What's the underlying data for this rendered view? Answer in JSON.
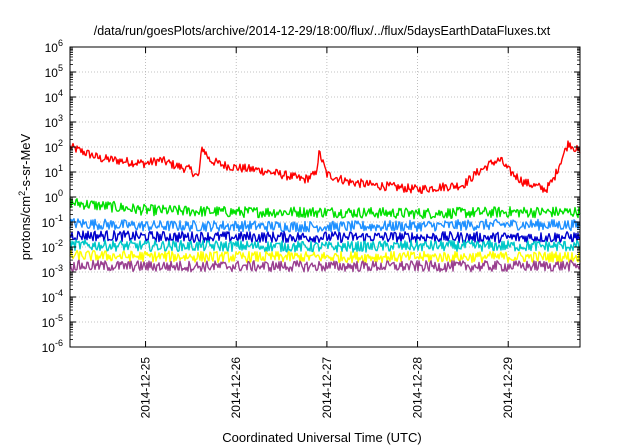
{
  "chart_data": {
    "type": "line",
    "title": "/data/run/goesPlots/archive/2014-12-29/18:00/flux/../flux/5daysEarthDataFluxes.txt",
    "xlabel": "Coordinated Universal Time (UTC)",
    "ylabel": {
      "base": "protons/cm",
      "sup": "2",
      "rest": "-s-sr-MeV"
    },
    "yscale": "log",
    "ylim": [
      1e-06,
      1000000.0
    ],
    "xlim": [
      "2014-12-24T04:00",
      "2014-12-29T19:00"
    ],
    "grid": true,
    "y_ticks": [
      {
        "value": 1e-06,
        "base": "10",
        "exp": "-6"
      },
      {
        "value": 1e-05,
        "base": "10",
        "exp": "-5"
      },
      {
        "value": 0.0001,
        "base": "10",
        "exp": "-4"
      },
      {
        "value": 0.001,
        "base": "10",
        "exp": "-3"
      },
      {
        "value": 0.01,
        "base": "10",
        "exp": "-2"
      },
      {
        "value": 0.1,
        "base": "10",
        "exp": "-1"
      },
      {
        "value": 1,
        "base": "10",
        "exp": "0"
      },
      {
        "value": 10,
        "base": "10",
        "exp": "1"
      },
      {
        "value": 100,
        "base": "10",
        "exp": "2"
      },
      {
        "value": 1000,
        "base": "10",
        "exp": "3"
      },
      {
        "value": 10000,
        "base": "10",
        "exp": "4"
      },
      {
        "value": 100000,
        "base": "10",
        "exp": "5"
      },
      {
        "value": 1000000,
        "base": "10",
        "exp": "6"
      }
    ],
    "x_ticks": [
      {
        "value": "2014-12-25T00:00",
        "label": "2014-12-25"
      },
      {
        "value": "2014-12-26T00:00",
        "label": "2014-12-26"
      },
      {
        "value": "2014-12-27T00:00",
        "label": "2014-12-27"
      },
      {
        "value": "2014-12-28T00:00",
        "label": "2014-12-28"
      },
      {
        "value": "2014-12-29T00:00",
        "label": "2014-12-29"
      }
    ],
    "series": [
      {
        "color": "#ff0000",
        "x": [
          "2014-12-24T04:00",
          "2014-12-24T08:00",
          "2014-12-24T12:00",
          "2014-12-24T16:00",
          "2014-12-24T20:00",
          "2014-12-25T00:00",
          "2014-12-25T04:00",
          "2014-12-25T08:00",
          "2014-12-25T12:00",
          "2014-12-25T14:00",
          "2014-12-25T15:00",
          "2014-12-25T17:00",
          "2014-12-25T20:00",
          "2014-12-26T00:00",
          "2014-12-26T06:00",
          "2014-12-26T12:00",
          "2014-12-26T18:00",
          "2014-12-26T21:00",
          "2014-12-26T22:00",
          "2014-12-27T00:00",
          "2014-12-27T06:00",
          "2014-12-27T12:00",
          "2014-12-27T18:00",
          "2014-12-28T00:00",
          "2014-12-28T06:00",
          "2014-12-28T12:00",
          "2014-12-28T16:00",
          "2014-12-28T20:00",
          "2014-12-28T22:00",
          "2014-12-29T00:00",
          "2014-12-29T04:00",
          "2014-12-29T08:00",
          "2014-12-29T10:00",
          "2014-12-29T12:00",
          "2014-12-29T14:00",
          "2014-12-29T16:00",
          "2014-12-29T19:00"
        ],
        "values": [
          100,
          60,
          35,
          30,
          25,
          22,
          30,
          18,
          12,
          6,
          100,
          30,
          20,
          15,
          12,
          8,
          5,
          8,
          60,
          8,
          4,
          3,
          2.5,
          2,
          2.5,
          3,
          10,
          25,
          30,
          12,
          4,
          2.5,
          2,
          5,
          30,
          150,
          60
        ]
      },
      {
        "color": "#00e000",
        "x": [
          "2014-12-24T04:00",
          "2014-12-24T12:00",
          "2014-12-25T00:00",
          "2014-12-26T00:00",
          "2014-12-27T00:00",
          "2014-12-28T00:00",
          "2014-12-29T00:00",
          "2014-12-29T19:00"
        ],
        "values": [
          0.6,
          0.45,
          0.3,
          0.25,
          0.25,
          0.22,
          0.25,
          0.25
        ]
      },
      {
        "color": "#1e90ff",
        "x": [
          "2014-12-24T04:00",
          "2014-12-25T00:00",
          "2014-12-26T00:00",
          "2014-12-27T00:00",
          "2014-12-28T00:00",
          "2014-12-29T00:00",
          "2014-12-29T19:00"
        ],
        "values": [
          0.09,
          0.07,
          0.07,
          0.065,
          0.07,
          0.08,
          0.075
        ]
      },
      {
        "color": "#0000cd",
        "x": [
          "2014-12-24T04:00",
          "2014-12-25T00:00",
          "2014-12-26T00:00",
          "2014-12-27T00:00",
          "2014-12-28T00:00",
          "2014-12-29T00:00",
          "2014-12-29T19:00"
        ],
        "values": [
          0.03,
          0.026,
          0.025,
          0.025,
          0.025,
          0.024,
          0.025
        ]
      },
      {
        "color": "#00c8c8",
        "x": [
          "2014-12-24T04:00",
          "2014-12-25T00:00",
          "2014-12-26T00:00",
          "2014-12-27T00:00",
          "2014-12-28T00:00",
          "2014-12-29T00:00",
          "2014-12-29T19:00"
        ],
        "values": [
          0.012,
          0.011,
          0.011,
          0.01,
          0.011,
          0.011,
          0.011
        ]
      },
      {
        "color": "#ffff00",
        "x": [
          "2014-12-24T04:00",
          "2014-12-25T00:00",
          "2014-12-26T00:00",
          "2014-12-27T00:00",
          "2014-12-28T00:00",
          "2014-12-29T00:00",
          "2014-12-29T19:00"
        ],
        "values": [
          0.0045,
          0.0042,
          0.004,
          0.004,
          0.004,
          0.004,
          0.004
        ]
      },
      {
        "color": "#993f8f",
        "x": [
          "2014-12-24T04:00",
          "2014-12-25T00:00",
          "2014-12-26T00:00",
          "2014-12-27T00:00",
          "2014-12-28T00:00",
          "2014-12-29T00:00",
          "2014-12-29T19:00"
        ],
        "values": [
          0.0018,
          0.0017,
          0.0017,
          0.0017,
          0.0017,
          0.0017,
          0.0018
        ]
      }
    ]
  }
}
